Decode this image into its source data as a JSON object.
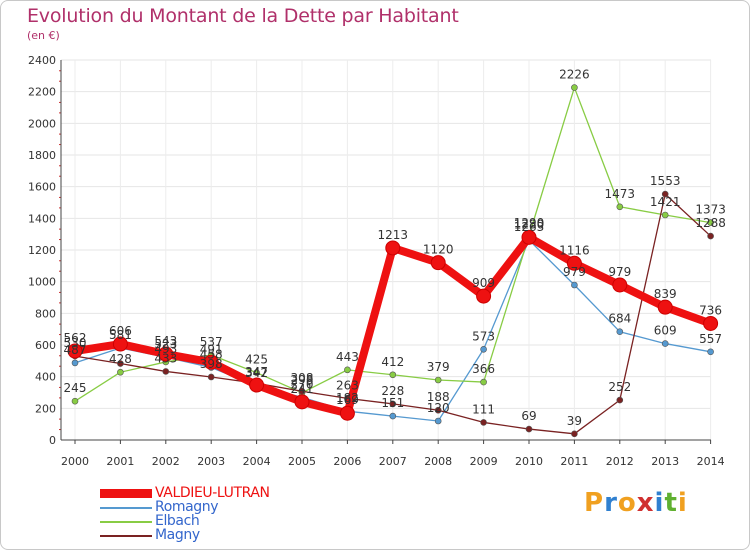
{
  "title": "Evolution du Montant de la Dette par Habitant",
  "subtitle": "(en €)",
  "logo": {
    "letters": [
      "P",
      "r",
      "o",
      "x",
      "i",
      "t",
      "i"
    ],
    "colors": [
      "#f0a020",
      "#3080d0",
      "#f0a020",
      "#d03030",
      "#3080d0",
      "#60b030",
      "#f0a020"
    ]
  },
  "chart_data": {
    "type": "line",
    "categories": [
      "2000",
      "2001",
      "2002",
      "2003",
      "2004",
      "2005",
      "2006",
      "2007",
      "2008",
      "2009",
      "2010",
      "2011",
      "2012",
      "2013",
      "2014"
    ],
    "ylim": [
      0,
      2400
    ],
    "yticks": [
      0,
      200,
      400,
      600,
      800,
      1000,
      1200,
      1400,
      1600,
      1800,
      2000,
      2200,
      2400
    ],
    "grid": true,
    "legend_position": "bottom-left",
    "series": [
      {
        "name": "VALDIEU-LUTRAN",
        "color": "#ee1111",
        "values": [
          562,
          606,
          543,
          491,
          347,
          241,
          169,
          1213,
          1120,
          909,
          1280,
          1116,
          979,
          839,
          736
        ]
      },
      {
        "name": "Romagny",
        "color": "#5599d0",
        "values": [
          487,
          581,
          523,
          458,
          342,
          270,
          182,
          151,
          120,
          573,
          1263,
          979,
          684,
          609,
          557
        ]
      },
      {
        "name": "Elbach",
        "color": "#88cc44",
        "values": [
          245,
          428,
          493,
          537,
          425,
          298,
          443,
          412,
          379,
          366,
          1290,
          2226,
          1473,
          1421,
          1373
        ]
      },
      {
        "name": "Magny",
        "color": "#7a2222",
        "values": [
          530,
          483,
          433,
          398,
          358,
          308,
          263,
          228,
          188,
          111,
          69,
          39,
          252,
          1553,
          1288
        ]
      }
    ],
    "data_labels": [
      {
        "series": 0,
        "index": 0,
        "text": "562"
      },
      {
        "series": 0,
        "index": 1,
        "text": "606"
      },
      {
        "series": 0,
        "index": 2,
        "text": "543"
      },
      {
        "series": 0,
        "index": 3,
        "text": "491"
      },
      {
        "series": 0,
        "index": 4,
        "text": "347"
      },
      {
        "series": 0,
        "index": 5,
        "text": "241"
      },
      {
        "series": 0,
        "index": 6,
        "text": "169"
      },
      {
        "series": 0,
        "index": 7,
        "text": "1213"
      },
      {
        "series": 0,
        "index": 8,
        "text": "1120"
      },
      {
        "series": 0,
        "index": 9,
        "text": "909"
      },
      {
        "series": 0,
        "index": 10,
        "text": "1280"
      },
      {
        "series": 0,
        "index": 11,
        "text": "1116"
      },
      {
        "series": 0,
        "index": 12,
        "text": "979"
      },
      {
        "series": 0,
        "index": 13,
        "text": "839"
      },
      {
        "series": 0,
        "index": 14,
        "text": "736"
      },
      {
        "series": 1,
        "index": 0,
        "text": "487"
      },
      {
        "series": 1,
        "index": 1,
        "text": "581"
      },
      {
        "series": 1,
        "index": 2,
        "text": "523"
      },
      {
        "series": 1,
        "index": 3,
        "text": "458"
      },
      {
        "series": 1,
        "index": 4,
        "text": "342"
      },
      {
        "series": 1,
        "index": 5,
        "text": "270"
      },
      {
        "series": 1,
        "index": 6,
        "text": "182"
      },
      {
        "series": 1,
        "index": 7,
        "text": "151"
      },
      {
        "series": 1,
        "index": 8,
        "text": "120"
      },
      {
        "series": 1,
        "index": 9,
        "text": "573"
      },
      {
        "series": 1,
        "index": 10,
        "text": "1263"
      },
      {
        "series": 1,
        "index": 11,
        "text": "979"
      },
      {
        "series": 1,
        "index": 12,
        "text": "684"
      },
      {
        "series": 1,
        "index": 13,
        "text": "609"
      },
      {
        "series": 1,
        "index": 14,
        "text": "557"
      },
      {
        "series": 2,
        "index": 0,
        "text": "245"
      },
      {
        "series": 2,
        "index": 1,
        "text": "428"
      },
      {
        "series": 2,
        "index": 2,
        "text": "493"
      },
      {
        "series": 2,
        "index": 3,
        "text": "537"
      },
      {
        "series": 2,
        "index": 4,
        "text": "425"
      },
      {
        "series": 2,
        "index": 5,
        "text": "298"
      },
      {
        "series": 2,
        "index": 6,
        "text": "443"
      },
      {
        "series": 2,
        "index": 7,
        "text": "412"
      },
      {
        "series": 2,
        "index": 8,
        "text": "379"
      },
      {
        "series": 2,
        "index": 9,
        "text": "366"
      },
      {
        "series": 2,
        "index": 10,
        "text": "1290"
      },
      {
        "series": 2,
        "index": 11,
        "text": "2226"
      },
      {
        "series": 2,
        "index": 12,
        "text": "1473"
      },
      {
        "series": 2,
        "index": 13,
        "text": "1421"
      },
      {
        "series": 2,
        "index": 14,
        "text": "1373"
      },
      {
        "series": 3,
        "index": 0,
        "text": "530"
      },
      {
        "series": 3,
        "index": 2,
        "text": "433"
      },
      {
        "series": 3,
        "index": 3,
        "text": "398"
      },
      {
        "series": 3,
        "index": 5,
        "text": "308"
      },
      {
        "series": 3,
        "index": 6,
        "text": "263"
      },
      {
        "series": 3,
        "index": 7,
        "text": "228"
      },
      {
        "series": 3,
        "index": 8,
        "text": "188"
      },
      {
        "series": 3,
        "index": 9,
        "text": "111"
      },
      {
        "series": 3,
        "index": 10,
        "text": "69"
      },
      {
        "series": 3,
        "index": 11,
        "text": "39"
      },
      {
        "series": 3,
        "index": 12,
        "text": "252"
      },
      {
        "series": 3,
        "index": 13,
        "text": "1553"
      },
      {
        "series": 3,
        "index": 14,
        "text": "1288"
      }
    ]
  }
}
